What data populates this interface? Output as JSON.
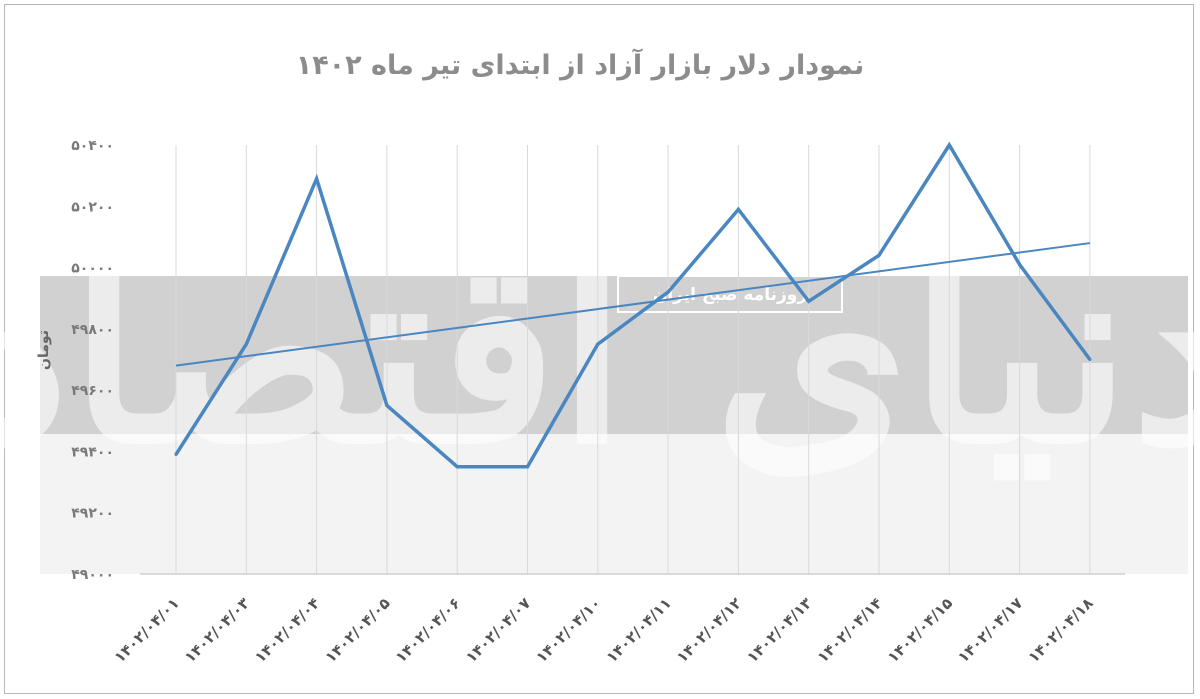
{
  "watermark": {
    "logo": "دنیای اقتصاد",
    "tagline": "روزنامه صبح ایران"
  },
  "chart_data": {
    "type": "line",
    "title": "نمودار دلار بازار آزاد از ابتدای تیر ماه ۱۴۰۲",
    "ylabel": "تومان",
    "xlabel": "",
    "categories": [
      "۱۴۰۲/۰۴/۰۱",
      "۱۴۰۲/۰۴/۰۳",
      "۱۴۰۲/۰۴/۰۴",
      "۱۴۰۲/۰۴/۰۵",
      "۱۴۰۲/۰۴/۰۶",
      "۱۴۰۲/۰۴/۰۷",
      "۱۴۰۲/۰۴/۱۰",
      "۱۴۰۲/۰۴/۱۱",
      "۱۴۰۲/۰۴/۱۲",
      "۱۴۰۲/۰۴/۱۳",
      "۱۴۰۲/۰۴/۱۴",
      "۱۴۰۲/۰۴/۱۵",
      "۱۴۰۲/۰۴/۱۷",
      "۱۴۰۲/۰۴/۱۸"
    ],
    "series": [
      {
        "values": [
          49390,
          49750,
          50290,
          49550,
          49350,
          49350,
          49750,
          49920,
          50190,
          49890,
          50040,
          50400,
          50010,
          49700
        ],
        "color": "#4a86c0"
      }
    ],
    "trendline": {
      "start": 49680,
      "end": 50080,
      "color": "#4a86c0"
    },
    "ylim": [
      49000,
      50400
    ],
    "yticks": [
      49000,
      49200,
      49400,
      49600,
      49800,
      50000,
      50200,
      50400
    ],
    "ytick_labels": [
      "۴۹۰۰۰",
      "۴۹۲۰۰",
      "۴۹۴۰۰",
      "۴۹۶۰۰",
      "۴۹۸۰۰",
      "۵۰۰۰۰",
      "۵۰۲۰۰",
      "۵۰۴۰۰"
    ],
    "grid": "vertical",
    "legend": "none"
  }
}
